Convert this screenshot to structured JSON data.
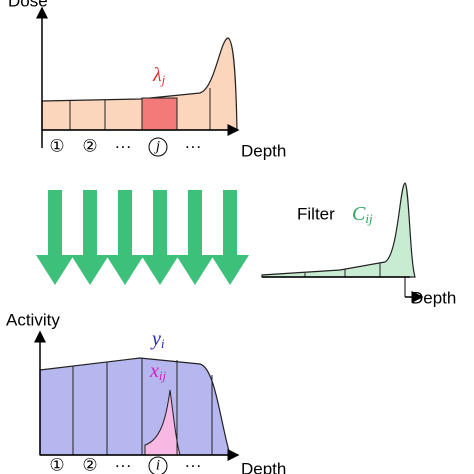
{
  "dose_panel": {
    "y_label": "Dose",
    "x_label": "Depth",
    "highlight_label": "λ",
    "highlight_sub": "j",
    "bins": [
      "①",
      "②",
      "···",
      "j",
      "···"
    ]
  },
  "filter_panel": {
    "label": "Filter",
    "symbol": "C",
    "symbol_sub": "ij",
    "x_label": "Depth"
  },
  "activity_panel": {
    "y_label": "Activity",
    "x_label": "Depth",
    "total_label": "y",
    "total_sub": "i",
    "part_label": "x",
    "part_sub": "ij",
    "bins": [
      "①",
      "②",
      "···",
      "i",
      "···"
    ]
  }
}
